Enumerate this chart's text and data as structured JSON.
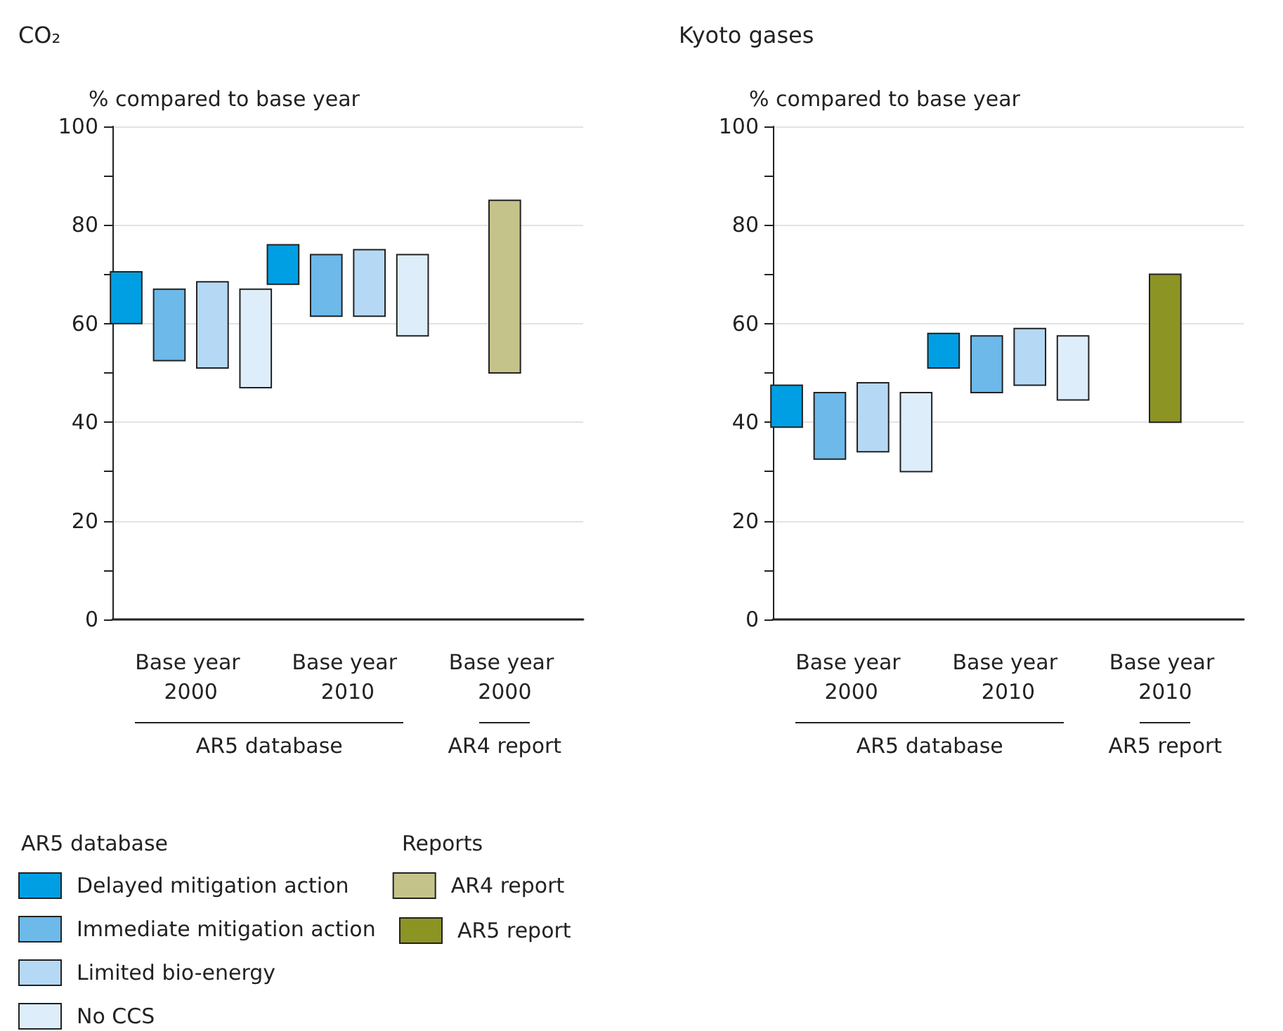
{
  "chart_data": [
    {
      "type": "bar",
      "title": "CO₂",
      "ylabel": "% compared to base year",
      "legend_title": "AR5 database",
      "categories": [
        "Base year 2000",
        "Base year 2010",
        "Base year 2000"
      ],
      "series": [
        {
          "name": "Delayed mitigation action",
          "color": "#009fe3",
          "base": [
            60,
            68,
            null
          ],
          "values": [
            10.5,
            8,
            null
          ]
        },
        {
          "name": "Immediate mitigation action",
          "color": "#6cb9ea",
          "base": [
            52.5,
            61.5,
            null
          ],
          "values": [
            14.5,
            12.5,
            null
          ]
        },
        {
          "name": "Limited bio-energy",
          "color": "#b5d9f5",
          "base": [
            51,
            61.5,
            null
          ],
          "values": [
            17.5,
            13.5,
            null
          ]
        },
        {
          "name": "No CCS",
          "color": "#ddeefa",
          "base": [
            47,
            57.5,
            null
          ],
          "values": [
            20,
            16.5,
            null
          ]
        },
        {
          "name": "AR4 report",
          "color": "#c4c48a",
          "base": [
            null,
            null,
            50
          ],
          "values": [
            null,
            null,
            35
          ]
        }
      ],
      "ylim": [
        0,
        100
      ],
      "yticks": [
        0,
        {
          "value": 10,
          "label": null
        },
        20,
        {
          "value": 30,
          "label": null
        },
        40,
        {
          "value": 50,
          "label": null
        },
        60,
        {
          "value": 70,
          "label": null
        },
        80,
        {
          "value": 90,
          "label": null
        },
        100
      ],
      "grid": "y",
      "legend": "bottom left",
      "annotations": [
        "AR5 database",
        "AR4 report"
      ]
    },
    {
      "type": "bar",
      "title": "Kyoto gases",
      "ylabel": "% compared to base year",
      "legend_title": "Reports",
      "categories": [
        "Base year 2000",
        "Base year 2010",
        "Base year 2010"
      ],
      "series": [
        {
          "color": "#009fe3",
          "base": [
            39,
            51,
            null
          ],
          "values": [
            8.5,
            7,
            null
          ]
        },
        {
          "color": "#6cb9ea",
          "base": [
            32.5,
            46,
            null
          ],
          "values": [
            13.5,
            11.5,
            null
          ]
        },
        {
          "color": "#b5d9f5",
          "base": [
            34,
            47.5,
            null
          ],
          "values": [
            14,
            11.5,
            null
          ]
        },
        {
          "color": "#ddeefa",
          "base": [
            30,
            44.5,
            null
          ],
          "values": [
            16,
            13,
            null
          ]
        },
        {
          "name": "AR5 report",
          "color": "#8c9424",
          "base": [
            null,
            null,
            40
          ],
          "values": [
            null,
            null,
            30
          ]
        }
      ],
      "ylim": [
        0,
        100
      ],
      "yticks": [
        0,
        {
          "value": 10,
          "label": null
        },
        20,
        {
          "value": 30,
          "label": null
        },
        40,
        {
          "value": 50,
          "label": null
        },
        60,
        {
          "value": 70,
          "label": null
        },
        80,
        {
          "value": 90,
          "label": null
        },
        100
      ],
      "grid": "y",
      "legend": "bottom",
      "annotations": [
        "AR5 database",
        "AR5 report"
      ]
    }
  ]
}
